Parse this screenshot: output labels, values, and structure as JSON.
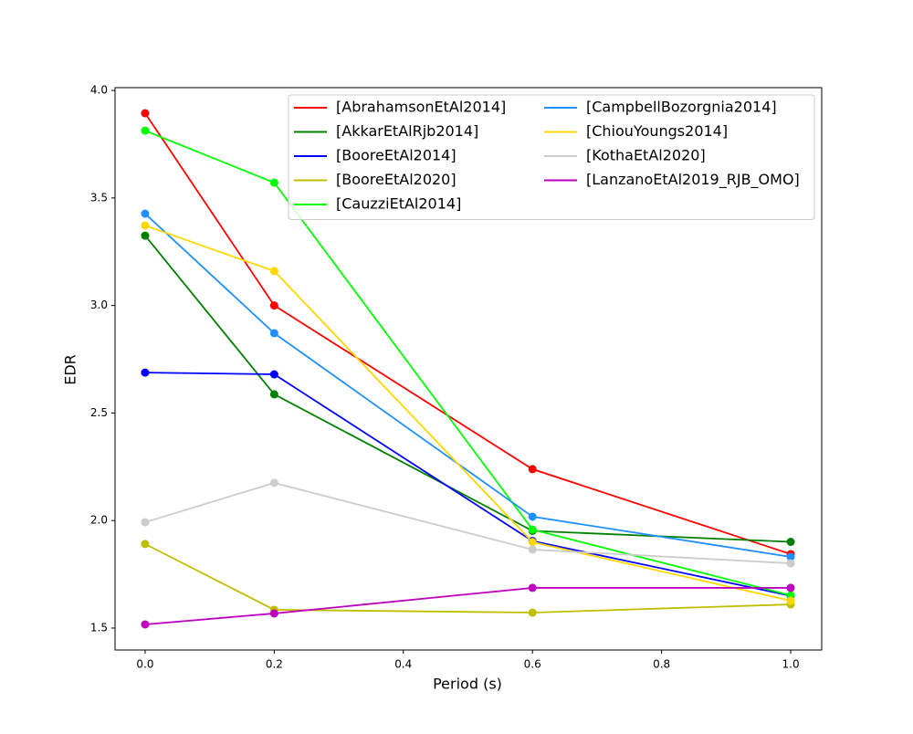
{
  "chart_data": {
    "type": "line",
    "xlabel": "Period (s)",
    "ylabel": "EDR",
    "x": [
      0.0,
      0.2,
      0.6,
      1.0
    ],
    "series": [
      {
        "name": "[AbrahamsonEtAl2014]",
        "color": "#ff0000",
        "values": [
          3.894,
          3.0,
          2.239,
          1.844
        ]
      },
      {
        "name": "[AkkarEtAlRjb2014]",
        "color": "#008000",
        "values": [
          3.325,
          2.587,
          1.952,
          1.901
        ]
      },
      {
        "name": "[BooreEtAl2014]",
        "color": "#0000ff",
        "values": [
          2.688,
          2.68,
          1.905,
          1.65
        ]
      },
      {
        "name": "[BooreEtAl2020]",
        "color": "#bfbf00",
        "values": [
          1.891,
          1.585,
          1.572,
          1.61
        ]
      },
      {
        "name": "[CauzziEtAl2014]",
        "color": "#00ff00",
        "values": [
          3.813,
          3.571,
          1.958,
          1.652
        ]
      },
      {
        "name": "[CampbellBozorgnia2014]",
        "color": "#1e90ff",
        "values": [
          3.427,
          2.871,
          2.018,
          1.831
        ]
      },
      {
        "name": "[ChiouYoungs2014]",
        "color": "#ffd700",
        "values": [
          3.372,
          3.16,
          1.9,
          1.627
        ]
      },
      {
        "name": "[KothaEtAl2020]",
        "color": "#cccccc",
        "values": [
          1.992,
          2.175,
          1.865,
          1.801
        ]
      },
      {
        "name": "[LanzanoEtAl2019_RJB_OMO]",
        "color": "#bf00bf",
        "values": [
          1.517,
          1.568,
          1.687,
          1.687
        ]
      }
    ],
    "xlim": [
      -0.0466,
      1.048
    ],
    "ylim": [
      1.398,
      4.013
    ],
    "xticks": [
      {
        "value": 0.0,
        "label": "0.0"
      },
      0.2,
      0.4,
      0.6,
      0.8,
      {
        "value": 1.0,
        "label": "1.0"
      }
    ],
    "yticks": [
      {
        "value": 1.5,
        "label": "1.5"
      },
      {
        "value": 2.0,
        "label": "2.0"
      },
      {
        "value": 2.5,
        "label": "2.5"
      },
      {
        "value": 3.0,
        "label": "3.0"
      },
      {
        "value": 3.5,
        "label": "3.5"
      },
      {
        "value": 4.0,
        "label": "4.0"
      }
    ],
    "legend": "upper right",
    "grid": false
  }
}
